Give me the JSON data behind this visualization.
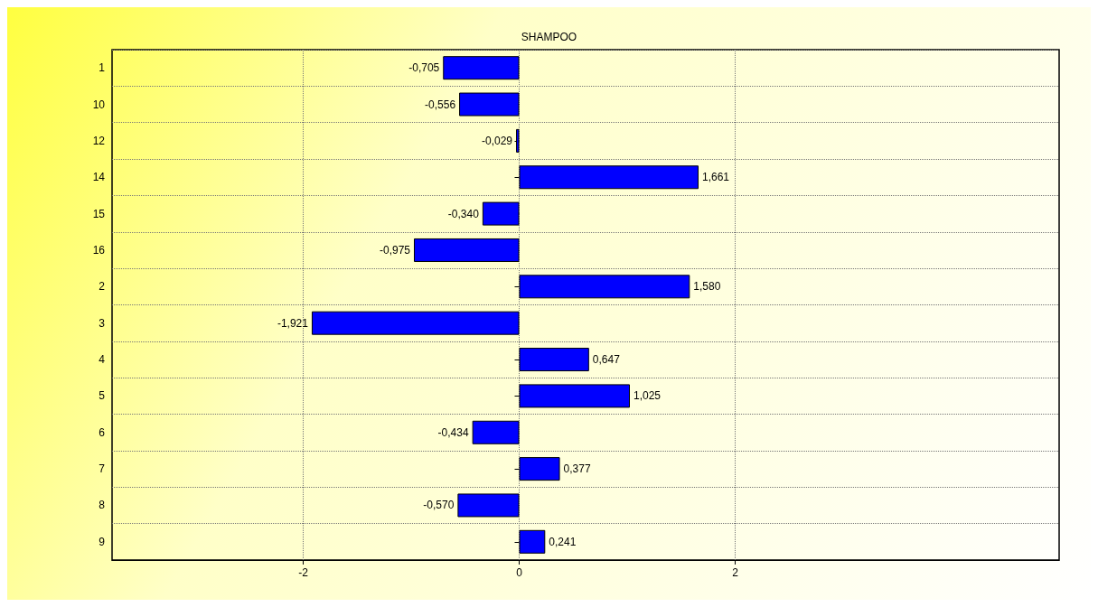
{
  "chart_data": {
    "type": "bar",
    "title": "SHAMPOO",
    "orientation": "horizontal",
    "categories": [
      "1",
      "10",
      "12",
      "14",
      "15",
      "16",
      "2",
      "3",
      "4",
      "5",
      "6",
      "7",
      "8",
      "9"
    ],
    "values": [
      -0.705,
      -0.556,
      -0.029,
      1.661,
      -0.34,
      -0.975,
      1.58,
      -1.921,
      0.647,
      1.025,
      -0.434,
      0.377,
      -0.57,
      0.241
    ],
    "value_labels": [
      "-0,705",
      "-0,556",
      "-0,029",
      "1,661",
      "-0,340",
      "-0,975",
      "1,580",
      "-1,921",
      "0,647",
      "1,025",
      "-0,434",
      "0,377",
      "-0,570",
      "0,241"
    ],
    "color": "#0000ff",
    "xlim": [
      -3.77,
      5.0
    ],
    "xticks": [
      -2,
      0,
      2
    ],
    "grid": true
  }
}
